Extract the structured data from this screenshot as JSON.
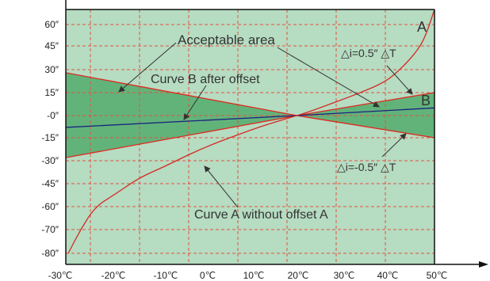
{
  "chart_data": {
    "type": "line",
    "title": "",
    "xlabel": "",
    "ylabel": "",
    "xlim": [
      -25,
      50
    ],
    "x_ticks": [
      "-30℃",
      "-20℃",
      "-10℃",
      "0℃",
      "10℃",
      "20℃",
      "30℃",
      "40℃",
      "50℃"
    ],
    "y_ticks": [
      "60″",
      "45″",
      "30″",
      "15″",
      "-0″",
      "-15″",
      "-30″",
      "-45″",
      "-60″",
      "-70″",
      "-80″"
    ],
    "grid": true,
    "colors": {
      "plot_background": "#b6dcc2",
      "acceptable_area": "#62b37a",
      "boundary_lines": "#e0281e",
      "curve_a": "#d42a22",
      "curve_b": "#1a237e",
      "grid": "#e0533f"
    },
    "series": [
      {
        "name": "A",
        "points": [
          [
            -24.5,
            -80
          ],
          [
            -22,
            -70
          ],
          [
            -19,
            -60
          ],
          [
            -15,
            -52
          ],
          [
            -10,
            -41
          ],
          [
            -5,
            -34
          ],
          [
            0,
            -26
          ],
          [
            5,
            -19
          ],
          [
            10,
            -13
          ],
          [
            15,
            -7
          ],
          [
            20,
            -2
          ],
          [
            22,
            0
          ],
          [
            25,
            3
          ],
          [
            30,
            9
          ],
          [
            35,
            15
          ],
          [
            40,
            22
          ],
          [
            43,
            30
          ],
          [
            46,
            40
          ],
          [
            48,
            50
          ],
          [
            50,
            66
          ]
        ]
      },
      {
        "name": "B",
        "points": [
          [
            -25,
            -8
          ],
          [
            22,
            0
          ],
          [
            50,
            5
          ]
        ]
      },
      {
        "name": "△i=0.5″ △T",
        "points": [
          [
            -25,
            -28
          ],
          [
            22,
            0
          ],
          [
            50,
            15
          ]
        ]
      },
      {
        "name": "△i=-0.5″ △T",
        "points": [
          [
            -25,
            28
          ],
          [
            22,
            0
          ],
          [
            50,
            -15
          ]
        ]
      }
    ],
    "annotations": [
      "Acceptable area",
      "Curve B after offset",
      "Curve A without offset A",
      "△i=0.5″ △T",
      "△i=-0.5″ △T"
    ]
  }
}
